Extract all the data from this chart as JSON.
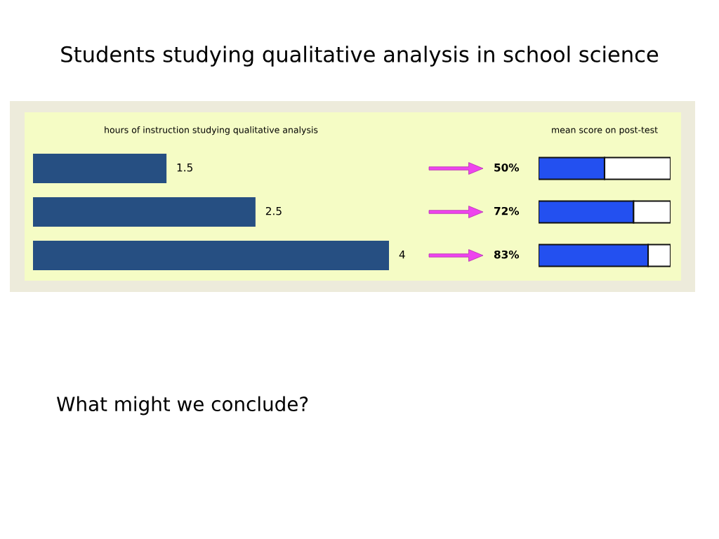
{
  "chart_data": [
    {
      "type": "bar",
      "orientation": "horizontal",
      "title": "hours of instruction studying qualitative analysis",
      "categories": [
        null,
        null,
        null
      ],
      "values": [
        1.5,
        2.5,
        4
      ],
      "color": "#264f82",
      "xlim": [
        0,
        4
      ],
      "data_labels": true,
      "tick_labels": false,
      "annotations": [
        "Students studying qualitative analysis in school science",
        "What might we conclude?"
      ]
    },
    {
      "type": "bar",
      "orientation": "horizontal",
      "stacked": true,
      "title": "mean score on post-test",
      "categories": [
        null,
        null,
        null
      ],
      "xlim": [
        0,
        100
      ],
      "tick_labels": false,
      "series": [
        {
          "color": "#2350f0",
          "values": [
            50,
            72,
            83
          ],
          "value_labels": [
            "50%",
            "72%",
            "83%"
          ]
        },
        {
          "color": "#ffffff",
          "values": [
            50,
            28,
            17
          ]
        }
      ]
    }
  ]
}
